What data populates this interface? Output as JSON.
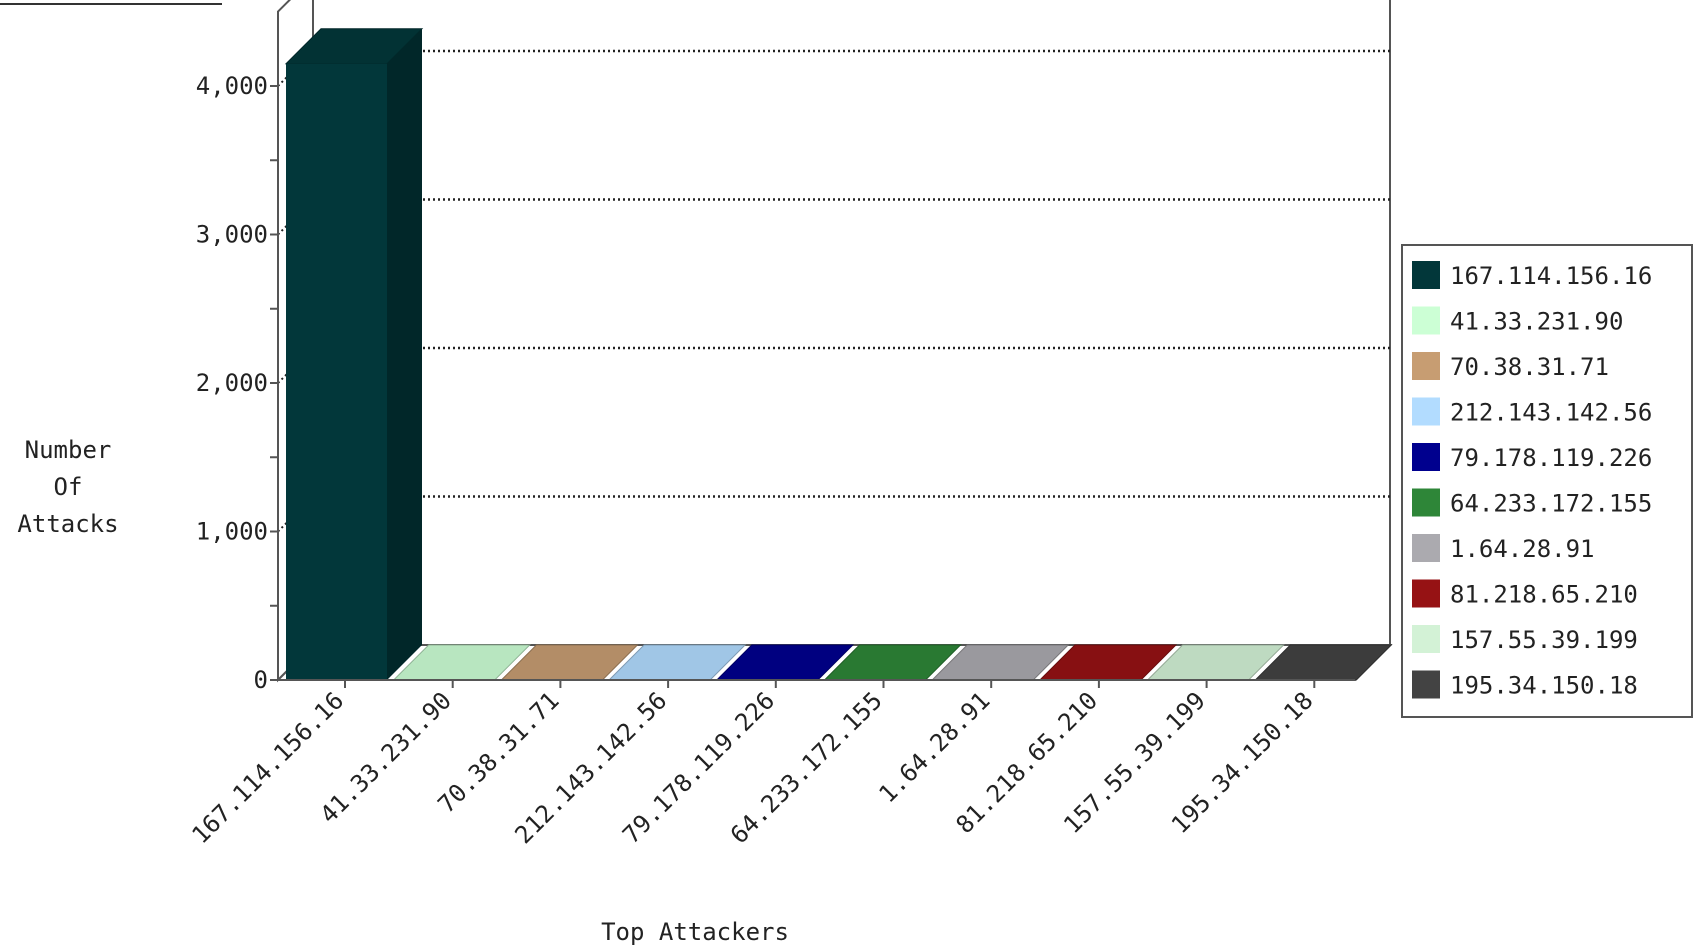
{
  "chart_data": {
    "type": "bar",
    "title": "",
    "xlabel": "Top Attackers",
    "ylabel_lines": [
      "Number",
      "Of",
      "Attacks"
    ],
    "categories": [
      "167.114.156.16",
      "41.33.231.90",
      "70.38.31.71",
      "212.143.142.56",
      "79.178.119.226",
      "64.233.172.155",
      "1.64.28.91",
      "81.218.65.210",
      "157.55.39.199",
      "195.34.150.18"
    ],
    "values": [
      4150,
      0,
      0,
      0,
      0,
      0,
      0,
      0,
      0,
      0
    ],
    "colors": [
      "#02373a",
      "#ccffd5",
      "#c79d72",
      "#b2dcff",
      "#00008e",
      "#2e8638",
      "#abaaaf",
      "#961214",
      "#d3f2d6",
      "#434343"
    ],
    "ylim": [
      0,
      4400
    ],
    "yticks": [
      0,
      1000,
      2000,
      3000,
      4000
    ],
    "ytick_labels": [
      "0",
      "1,000",
      "2,000",
      "3,000",
      "4,000"
    ],
    "grid": true,
    "legend_position": "right",
    "legend": [
      "167.114.156.16",
      "41.33.231.90",
      "70.38.31.71",
      "212.143.142.56",
      "79.178.119.226",
      "64.233.172.155",
      "1.64.28.91",
      "81.218.65.210",
      "157.55.39.199",
      "195.34.150.18"
    ]
  }
}
